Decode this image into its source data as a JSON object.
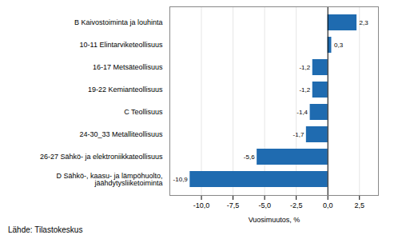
{
  "chart_data": {
    "type": "bar",
    "orientation": "horizontal",
    "categories": [
      "D Sähkö-, kaasu- ja lämpöhuolto,\njäähdytysliiketoiminta",
      "26-27 Sähkö- ja elektroniikkateollisuus",
      "24-30_33 Metalliteollisuus",
      "C Teollisuus",
      "19-22 Kemianteollisuus",
      "16-17 Metsäteollisuus",
      "10-11 Elintarviketeollisuus",
      "B Kaivostoiminta ja louhinta"
    ],
    "values": [
      -10.9,
      -5.6,
      -1.7,
      -1.4,
      -1.2,
      -1.2,
      0.3,
      2.3
    ],
    "value_labels": [
      "-10,9",
      "-5,6",
      "-1,7",
      "-1,4",
      "-1,2",
      "-1,2",
      "0,3",
      "2,3"
    ],
    "data_labels": true,
    "color": "#1f6bb0",
    "xlabel": "Vuosimuutos, %",
    "xlim": [
      -12.5,
      4.0
    ],
    "xticks": [
      {
        "value": -10.0,
        "label": "-10,0"
      },
      {
        "value": -7.5,
        "label": "-7,5"
      },
      {
        "value": -5.0,
        "label": "-5,0"
      },
      {
        "value": -2.5,
        "label": "-2,5"
      },
      {
        "value": 0.0,
        "label": "0,0"
      },
      {
        "value": 2.5,
        "label": "2,5"
      }
    ],
    "grid": true,
    "annotations": [
      "Lähde: Tilastokeskus"
    ]
  }
}
